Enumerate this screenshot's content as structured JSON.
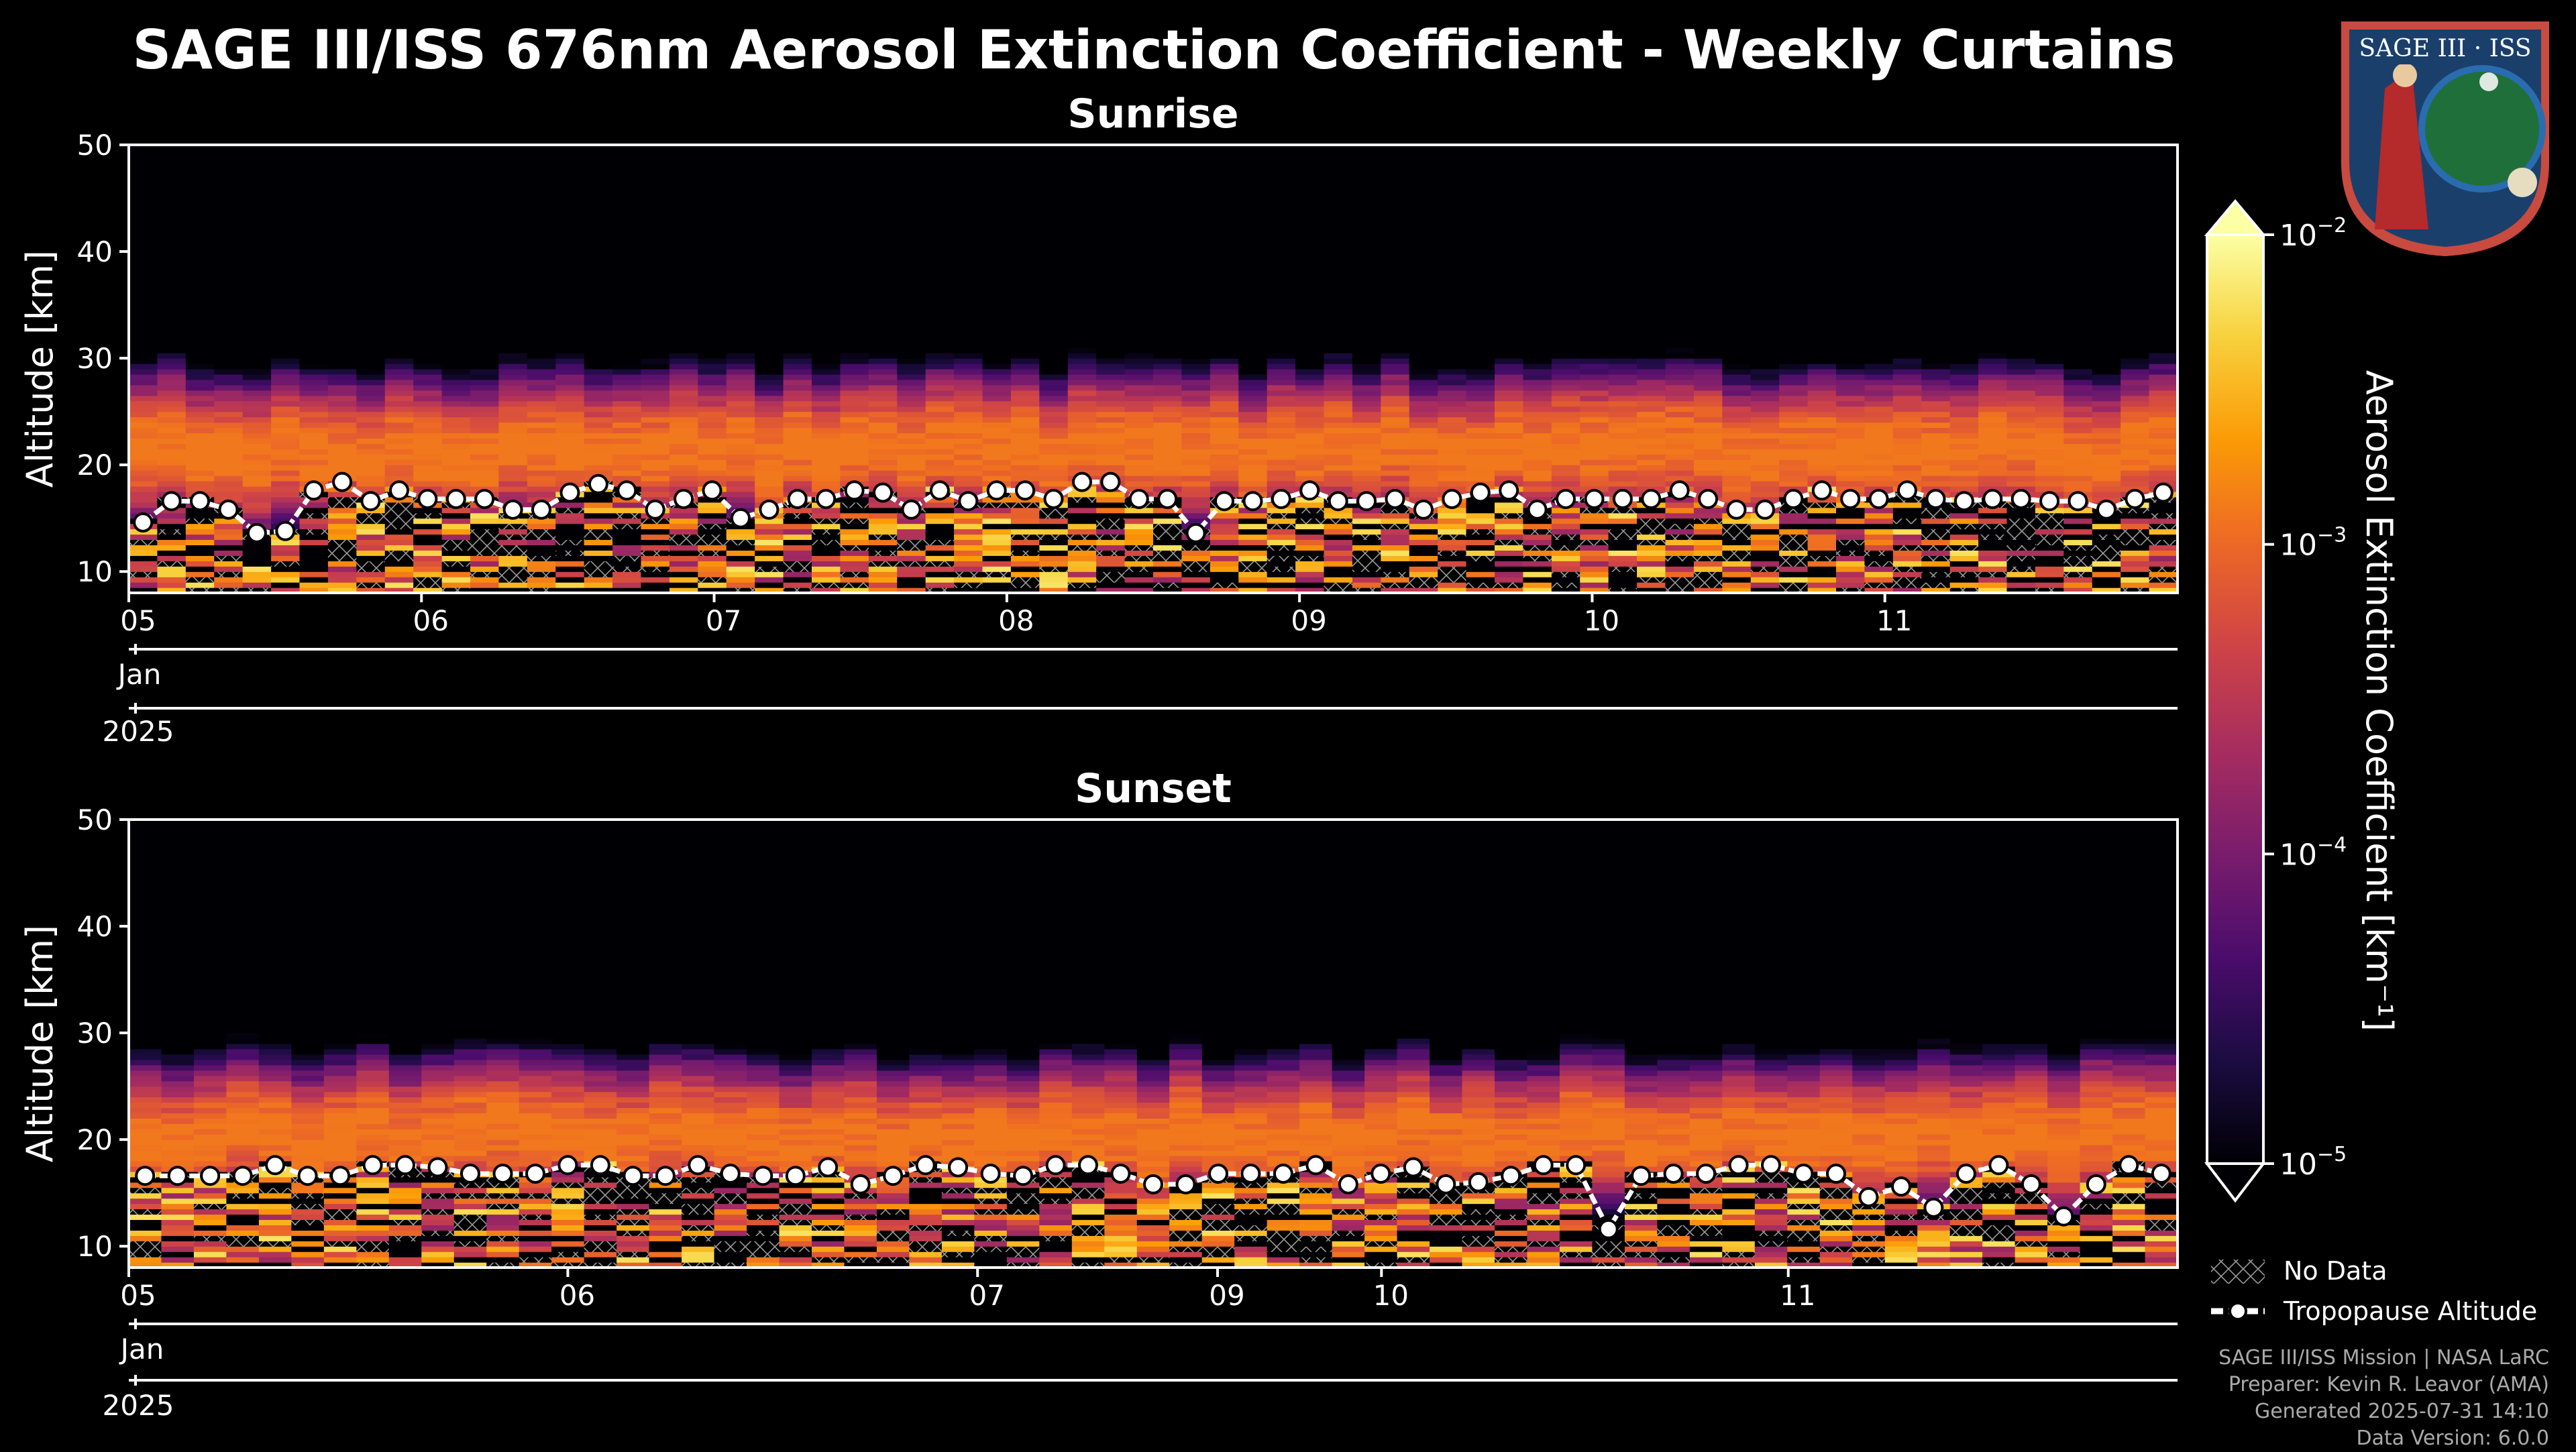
{
  "title": "SAGE III/ISS 676nm Aerosol Extinction Coefficient - Weekly Curtains",
  "logo_text": "SAGE III · ISS",
  "colorbar": {
    "label": "Aerosol Extinction Coefficient [km⁻¹]",
    "ticks": [
      {
        "base": "10",
        "exp": "−2",
        "value": -2
      },
      {
        "base": "10",
        "exp": "−3",
        "value": -3
      },
      {
        "base": "10",
        "exp": "−4",
        "value": -4
      },
      {
        "base": "10",
        "exp": "−5",
        "value": -5
      }
    ],
    "log_range": [
      -5,
      -2
    ],
    "colormap": [
      "#000004",
      "#1b0c41",
      "#4a0c6b",
      "#781c6d",
      "#a52c60",
      "#cf4446",
      "#ed6925",
      "#fb9b06",
      "#f7d13d",
      "#fcffa4"
    ]
  },
  "legend": {
    "no_data": "No Data",
    "tropopause": "Tropopause Altitude"
  },
  "credits": [
    "SAGE III/ISS Mission | NASA LaRC",
    "Preparer: Kevin R. Leavor (AMA)",
    "Generated 2025-07-31 14:10",
    "Data Version: 6.0.0"
  ],
  "chart_data": [
    {
      "type": "heatmap",
      "title": "Sunrise",
      "ylabel": "Altitude [km]",
      "ylim": [
        8,
        50
      ],
      "yticks": [
        10,
        20,
        30,
        40,
        50
      ],
      "xlim_days": [
        5.0,
        12.0
      ],
      "xtick_labels": [
        {
          "label": "05",
          "day": 5.0
        },
        {
          "label": "06",
          "day": 6.0
        },
        {
          "label": "07",
          "day": 7.0
        },
        {
          "label": "08",
          "day": 8.0
        },
        {
          "label": "09",
          "day": 9.0
        },
        {
          "label": "10",
          "day": 10.0
        },
        {
          "label": "11",
          "day": 11.0
        }
      ],
      "month_label": "Jan",
      "year_label": "2025",
      "profile_count": 72,
      "tropopause_km": [
        14.6,
        16.6,
        16.6,
        15.8,
        13.6,
        13.8,
        17.6,
        18.4,
        16.6,
        17.6,
        16.8,
        16.8,
        16.8,
        15.8,
        15.8,
        17.4,
        18.2,
        17.6,
        15.8,
        16.8,
        17.6,
        15.0,
        15.8,
        16.8,
        16.8,
        17.6,
        17.4,
        15.8,
        17.6,
        16.6,
        17.6,
        17.6,
        16.8,
        18.4,
        18.4,
        16.8,
        16.8,
        13.6,
        16.6,
        16.6,
        16.8,
        17.6,
        16.6,
        16.6,
        16.8,
        15.8,
        16.8,
        17.4,
        17.6,
        15.8,
        16.8,
        16.8,
        16.8,
        16.8,
        17.6,
        16.8,
        15.8,
        15.8,
        16.8,
        17.6,
        16.8,
        16.8,
        17.6,
        16.8,
        16.6,
        16.8,
        16.8,
        16.6,
        16.6,
        15.8,
        16.8,
        17.4
      ],
      "aerosol_peak_km": 21,
      "aerosol_top_km": 33
    },
    {
      "type": "heatmap",
      "title": "Sunset",
      "ylabel": "Altitude [km]",
      "ylim": [
        8,
        50
      ],
      "yticks": [
        10,
        20,
        30,
        40,
        50
      ],
      "xlim_days": [
        5.0,
        12.0
      ],
      "xtick_labels": [
        {
          "label": "05",
          "day": 5.0
        },
        {
          "label": "06",
          "day": 6.5
        },
        {
          "label": "07",
          "day": 7.9
        },
        {
          "label": "09",
          "day": 8.72
        },
        {
          "label": "10",
          "day": 9.28
        },
        {
          "label": "11",
          "day": 10.67
        }
      ],
      "month_label": "Jan",
      "year_label": "2025",
      "profile_count": 63,
      "tropopause_km": [
        16.6,
        16.6,
        16.6,
        16.6,
        17.6,
        16.6,
        16.6,
        17.6,
        17.6,
        17.4,
        16.8,
        16.8,
        16.8,
        17.6,
        17.6,
        16.6,
        16.6,
        17.6,
        16.8,
        16.6,
        16.6,
        17.4,
        15.8,
        16.6,
        17.6,
        17.4,
        16.8,
        16.6,
        17.6,
        17.6,
        16.8,
        15.8,
        15.8,
        16.8,
        16.8,
        16.8,
        17.6,
        15.8,
        16.8,
        17.4,
        15.8,
        16.0,
        16.6,
        17.6,
        17.6,
        11.6,
        16.6,
        16.8,
        16.8,
        17.6,
        17.6,
        16.8,
        16.8,
        14.6,
        15.6,
        13.6,
        16.8,
        17.6,
        15.8,
        12.8,
        15.8,
        17.6,
        16.8
      ],
      "aerosol_peak_km": 20,
      "aerosol_top_km": 33
    }
  ]
}
